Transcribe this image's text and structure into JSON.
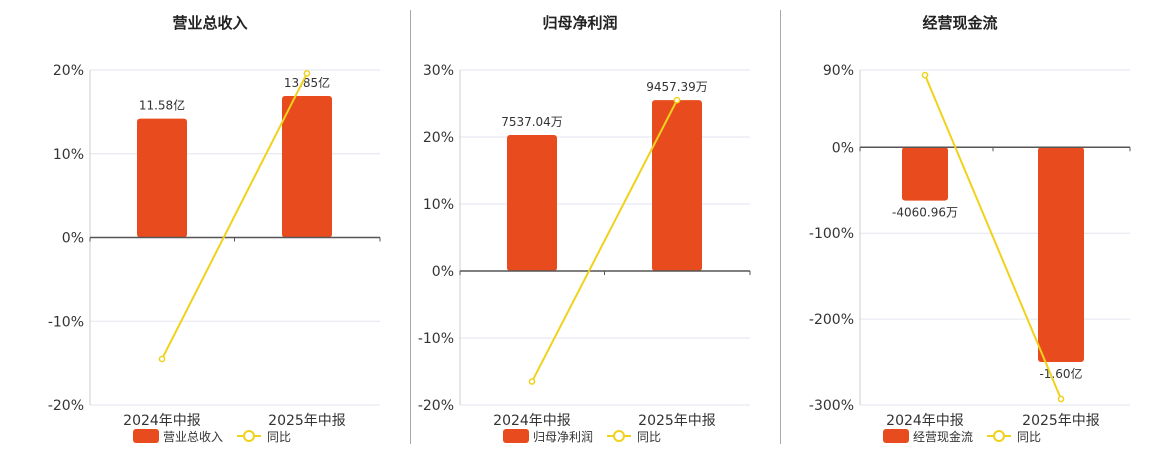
{
  "colors": {
    "bar": "#e84c1e",
    "line": "#f0d21c",
    "grid": "#e3e6ef",
    "axis": "#555555",
    "text": "#333333"
  },
  "legend_icons": {
    "bar": "bar-swatch-icon",
    "line": "line-circle-icon"
  },
  "chart_data": [
    {
      "type": "bar",
      "title": "营业总收入",
      "categories": [
        "2024年中报",
        "2025年中报"
      ],
      "ylim": [
        -20,
        20
      ],
      "yticks": [
        -20,
        -10,
        0,
        10,
        20
      ],
      "ytick_labels": [
        "-20%",
        "-10%",
        "0%",
        "10%",
        "20%"
      ],
      "grid": true,
      "legend": "bottom-center",
      "series": [
        {
          "name": "营业总收入",
          "type": "bar",
          "values": [
            14.2,
            16.9
          ],
          "labels": [
            "11.58亿",
            "13.85亿"
          ]
        },
        {
          "name": "同比",
          "type": "line",
          "values": [
            -14.5,
            19.6
          ]
        }
      ]
    },
    {
      "type": "bar",
      "title": "归母净利润",
      "categories": [
        "2024年中报",
        "2025年中报"
      ],
      "ylim": [
        -20,
        30
      ],
      "yticks": [
        -20,
        -10,
        0,
        10,
        20,
        30
      ],
      "ytick_labels": [
        "-20%",
        "-10%",
        "0%",
        "10%",
        "20%",
        "30%"
      ],
      "grid": true,
      "legend": "bottom-center",
      "series": [
        {
          "name": "归母净利润",
          "type": "bar",
          "values": [
            20.3,
            25.5
          ],
          "labels": [
            "7537.04万",
            "9457.39万"
          ]
        },
        {
          "name": "同比",
          "type": "line",
          "values": [
            -16.5,
            25.5
          ]
        }
      ]
    },
    {
      "type": "bar",
      "title": "经营现金流",
      "categories": [
        "2024年中报",
        "2025年中报"
      ],
      "ylim": [
        -300,
        90
      ],
      "yticks": [
        -300,
        -200,
        -100,
        0,
        90
      ],
      "ytick_labels": [
        "-300%",
        "-200%",
        "-100%",
        "0%",
        "90%"
      ],
      "grid": true,
      "legend": "bottom-center",
      "series": [
        {
          "name": "经营现金流",
          "type": "bar",
          "values": [
            -62,
            -250
          ],
          "labels": [
            "-4060.96万",
            "-1.60亿"
          ]
        },
        {
          "name": "同比",
          "type": "line",
          "values": [
            84,
            -293
          ]
        }
      ]
    }
  ]
}
